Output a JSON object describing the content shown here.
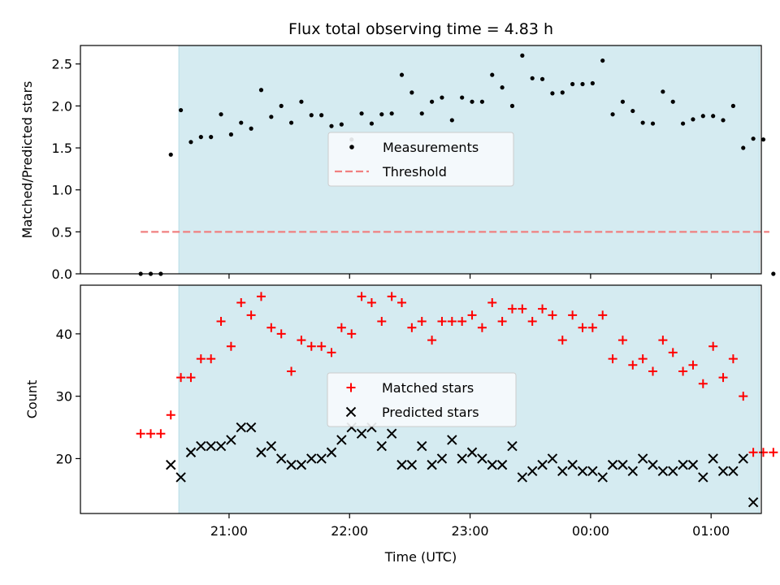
{
  "chart_data": [
    {
      "type": "scatter",
      "title": "Flux total observing time = 4.83 h",
      "ylabel": "Matched/Predicted stars",
      "xlabel": "",
      "x_unit": "minutes since 20:00 UTC",
      "xlim": [
        -14,
        325
      ],
      "ylim": [
        0,
        2.72
      ],
      "yticks": [
        0.0,
        0.5,
        1.0,
        1.5,
        2.0,
        2.5
      ],
      "ytick_labels": [
        "0.0",
        "0.5",
        "1.0",
        "1.5",
        "2.0",
        "2.5"
      ],
      "shaded_span": [
        35,
        324
      ],
      "shade_color": "#d5ebf1",
      "legend": {
        "placement": "center",
        "entries": [
          "Measurements",
          "Threshold"
        ]
      },
      "threshold": {
        "name": "Threshold",
        "value": 0.5,
        "x_range": [
          16,
          329
        ],
        "color": "#f08080"
      },
      "series": [
        {
          "name": "Measurements",
          "color": "#000000",
          "x": [
            16,
            21,
            26,
            31,
            36,
            41,
            46,
            51,
            56,
            61,
            66,
            71,
            76,
            81,
            86,
            91,
            96,
            101,
            106,
            111,
            116,
            121,
            126,
            131,
            136,
            141,
            146,
            151,
            156,
            161,
            166,
            171,
            176,
            181,
            186,
            191,
            196,
            201,
            206,
            211,
            216,
            221,
            226,
            231,
            236,
            241,
            246,
            251,
            256,
            261,
            266,
            271,
            276,
            281,
            286,
            291,
            296,
            301,
            306,
            311,
            316,
            321,
            326,
            331
          ],
          "values": [
            0.0,
            0.0,
            0.0,
            1.42,
            1.95,
            1.57,
            1.63,
            1.63,
            1.9,
            1.66,
            1.8,
            1.73,
            2.19,
            1.87,
            2.0,
            1.8,
            2.05,
            1.89,
            1.89,
            1.76,
            1.78,
            1.6,
            1.91,
            1.79,
            1.9,
            1.91,
            2.37,
            2.16,
            1.91,
            2.05,
            2.1,
            1.83,
            2.1,
            2.05,
            2.05,
            2.37,
            2.22,
            2.0,
            2.6,
            2.33,
            2.32,
            2.15,
            2.16,
            2.26,
            2.26,
            2.27,
            2.54,
            1.9,
            2.05,
            1.94,
            1.8,
            1.79,
            2.17,
            2.05,
            1.79,
            1.84,
            1.88,
            1.88,
            1.83,
            2.0,
            1.5,
            1.61,
            1.6,
            0.0
          ]
        }
      ]
    },
    {
      "type": "scatter",
      "xlabel": "Time (UTC)",
      "ylabel": "Count",
      "x_unit": "minutes since 20:00 UTC",
      "xlim": [
        -14,
        325
      ],
      "ylim": [
        11.2,
        47.8
      ],
      "yticks": [
        20,
        30,
        40
      ],
      "ytick_labels": [
        "20",
        "30",
        "40"
      ],
      "xticks": [
        60,
        120,
        180,
        240,
        300
      ],
      "xtick_labels": [
        "21:00",
        "22:00",
        "23:00",
        "00:00",
        "01:00"
      ],
      "shaded_span": [
        35,
        324
      ],
      "shade_color": "#d5ebf1",
      "legend": {
        "placement": "center",
        "entries": [
          "Matched stars",
          "Predicted stars"
        ]
      },
      "x": [
        16,
        21,
        26,
        31,
        36,
        41,
        46,
        51,
        56,
        61,
        66,
        71,
        76,
        81,
        86,
        91,
        96,
        101,
        106,
        111,
        116,
        121,
        126,
        131,
        136,
        141,
        146,
        151,
        156,
        161,
        166,
        171,
        176,
        181,
        186,
        191,
        196,
        201,
        206,
        211,
        216,
        221,
        226,
        231,
        236,
        241,
        246,
        251,
        256,
        261,
        266,
        271,
        276,
        281,
        286,
        291,
        296,
        301,
        306,
        311,
        316,
        321,
        326,
        331
      ],
      "series": [
        {
          "name": "Matched stars",
          "color": "#ff0000",
          "marker": "plus",
          "values": [
            24,
            24,
            24,
            27,
            33,
            33,
            36,
            36,
            42,
            38,
            45,
            43,
            46,
            41,
            40,
            34,
            39,
            38,
            38,
            37,
            41,
            40,
            46,
            45,
            42,
            46,
            45,
            41,
            42,
            39,
            42,
            42,
            42,
            43,
            41,
            45,
            42,
            44,
            44,
            42,
            44,
            43,
            39,
            43,
            41,
            41,
            43,
            36,
            39,
            35,
            36,
            34,
            39,
            37,
            34,
            35,
            32,
            38,
            33,
            36,
            30,
            21,
            21,
            21
          ]
        },
        {
          "name": "Predicted stars",
          "color": "#000000",
          "marker": "x",
          "values": [
            null,
            null,
            null,
            19,
            17,
            21,
            22,
            22,
            22,
            23,
            25,
            25,
            21,
            22,
            20,
            19,
            19,
            20,
            20,
            21,
            23,
            25,
            24,
            25,
            22,
            24,
            19,
            19,
            22,
            19,
            20,
            23,
            20,
            21,
            20,
            19,
            19,
            22,
            17,
            18,
            19,
            20,
            18,
            19,
            18,
            18,
            17,
            19,
            19,
            18,
            20,
            19,
            18,
            18,
            19,
            19,
            17,
            20,
            18,
            18,
            20,
            13,
            null,
            null
          ]
        }
      ]
    }
  ]
}
